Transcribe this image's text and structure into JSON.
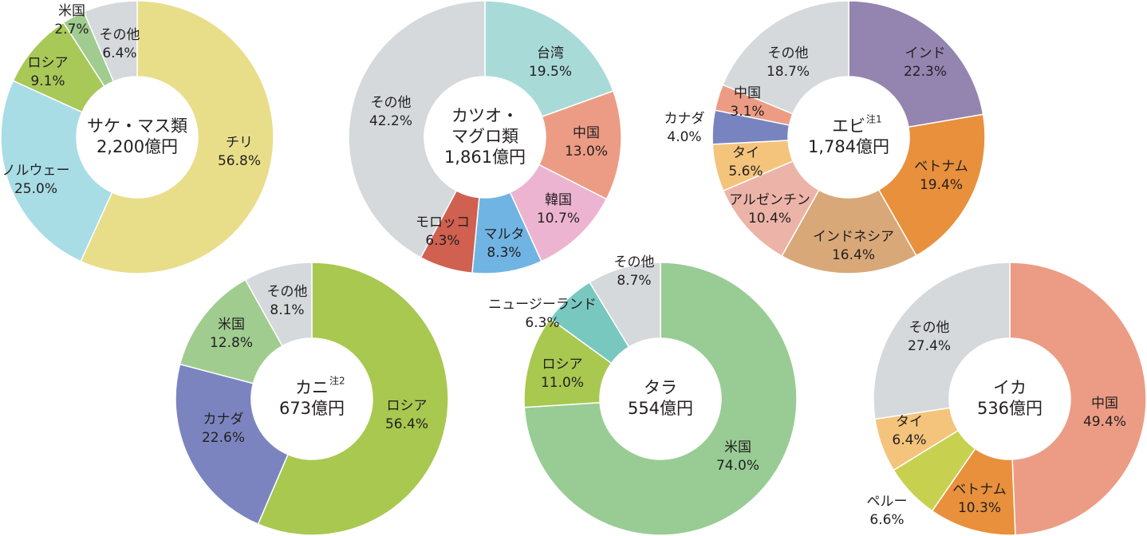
{
  "chart_data": [
    {
      "type": "pie",
      "title": [
        "サケ・マス類"
      ],
      "total": "2,200億円",
      "categories": [
        "チリ",
        "ノルウェー",
        "ロシア",
        "米国",
        "その他"
      ],
      "values": [
        56.8,
        25.0,
        9.1,
        2.7,
        6.4
      ],
      "value_labels": [
        "56.8%",
        "25.0%",
        "9.1%",
        "2.7%",
        "6.4%"
      ],
      "colors": [
        "#e8de8a",
        "#a8dde6",
        "#a8c858",
        "#a0cc90",
        "#d5d9db"
      ]
    },
    {
      "type": "pie",
      "title": [
        "カツオ・",
        "マグロ類"
      ],
      "total": "1,861億円",
      "categories": [
        "台湾",
        "中国",
        "韓国",
        "マルタ",
        "モロッコ",
        "その他"
      ],
      "values": [
        19.5,
        13.0,
        10.7,
        8.3,
        6.3,
        42.2
      ],
      "value_labels": [
        "19.5%",
        "13.0%",
        "10.7%",
        "8.3%",
        "6.3%",
        "42.2%"
      ],
      "colors": [
        "#a8dad8",
        "#ec9c84",
        "#ecb4d0",
        "#70b4e4",
        "#d06050",
        "#d5d9db"
      ]
    },
    {
      "type": "pie",
      "title": [
        "エビ"
      ],
      "note": "注1",
      "total": "1,784億円",
      "categories": [
        "インド",
        "ベトナム",
        "インドネシア",
        "アルゼンチン",
        "タイ",
        "カナダ",
        "中国",
        "その他"
      ],
      "values": [
        22.3,
        19.4,
        16.4,
        10.4,
        5.6,
        4.0,
        3.1,
        18.7
      ],
      "value_labels": [
        "22.3%",
        "19.4%",
        "16.4%",
        "10.4%",
        "5.6%",
        "4.0%",
        "3.1%",
        "18.7%"
      ],
      "colors": [
        "#9484b0",
        "#e8903c",
        "#d8a878",
        "#ecb4a8",
        "#f4c47c",
        "#7884c0",
        "#ec9c84",
        "#d5d9db"
      ]
    },
    {
      "type": "pie",
      "title": [
        "カニ"
      ],
      "note": "注2",
      "total": "673億円",
      "categories": [
        "ロシア",
        "カナダ",
        "米国",
        "その他"
      ],
      "values": [
        56.4,
        22.6,
        12.8,
        8.1
      ],
      "value_labels": [
        "56.4%",
        "22.6%",
        "12.8%",
        "8.1%"
      ],
      "colors": [
        "#a8c850",
        "#7c84c0",
        "#a0cc90",
        "#d5d9db"
      ]
    },
    {
      "type": "pie",
      "title": [
        "タラ"
      ],
      "total": "554億円",
      "categories": [
        "米国",
        "ロシア",
        "ニュージーランド",
        "その他"
      ],
      "values": [
        74.0,
        11.0,
        6.3,
        8.7
      ],
      "value_labels": [
        "74.0%",
        "11.0%",
        "6.3%",
        "8.7%"
      ],
      "colors": [
        "#98cc94",
        "#a8c850",
        "#78c8c0",
        "#d5d9db"
      ]
    },
    {
      "type": "pie",
      "title": [
        "イカ"
      ],
      "total": "536億円",
      "categories": [
        "中国",
        "ベトナム",
        "ペルー",
        "タイ",
        "その他"
      ],
      "values": [
        49.4,
        10.3,
        6.6,
        6.4,
        27.4
      ],
      "value_labels": [
        "49.4%",
        "10.3%",
        "6.6%",
        "6.4%",
        "27.4%"
      ],
      "colors": [
        "#ec9c84",
        "#e8903c",
        "#c8d050",
        "#f4c47c",
        "#d5d9db"
      ]
    }
  ]
}
